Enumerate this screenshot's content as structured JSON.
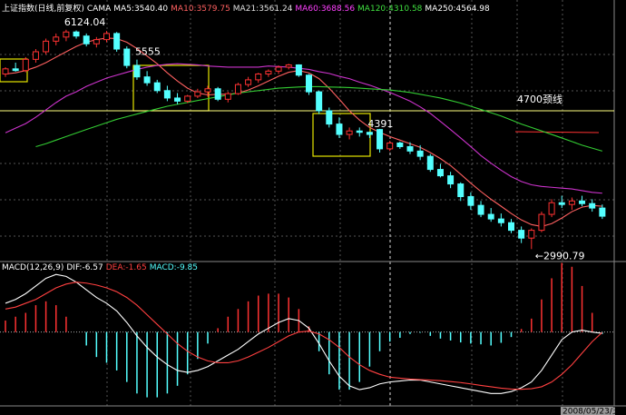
{
  "chart_data": [
    {
      "type": "candlestick",
      "title": "上证指数(日线,前复权)",
      "subtitle": "CAMA",
      "log_scale": true,
      "ylim": [
        2880,
        6750
      ],
      "up_color": "#ff3232",
      "down_color": "#54ffff",
      "legend_labels": [
        {
          "text": "MA5:3540.40",
          "color": "#ffffff"
        },
        {
          "text": "MA10:3579.75",
          "color": "#ff6060"
        },
        {
          "text": "MA21:3561.24",
          "color": "#e0e0e0"
        },
        {
          "text": "MA60:3688.56",
          "color": "#ff40ff"
        },
        {
          "text": "MA120:4310.58",
          "color": "#40e040"
        },
        {
          "text": "MA250:4564.98",
          "color": "#ffffff"
        }
      ],
      "open": [
        5300,
        5390,
        5360,
        5560,
        5700,
        5900,
        5980,
        6080,
        6000,
        5850,
        5930,
        6050,
        5750,
        5450,
        5250,
        5150,
        5020,
        4900,
        4850,
        4930,
        5000,
        5050,
        4880,
        4970,
        5120,
        5200,
        5300,
        5350,
        5420,
        5460,
        5280,
        5000,
        4700,
        4500,
        4350,
        4400,
        4380,
        4420,
        4150,
        4230,
        4180,
        4120,
        4050,
        3880,
        3800,
        3700,
        3550,
        3450,
        3350,
        3300,
        3260,
        3180,
        3100,
        3180,
        3350,
        3480,
        3460,
        3500,
        3470,
        3420
      ],
      "high": [
        5420,
        5500,
        5600,
        5750,
        5950,
        6050,
        6124.04,
        6110,
        6050,
        5980,
        6100,
        6080,
        5800,
        5555,
        5350,
        5200,
        5100,
        4980,
        4950,
        5050,
        5100,
        5080,
        5000,
        5150,
        5250,
        5320,
        5380,
        5450,
        5480,
        5470,
        5300,
        5020,
        4750,
        4600,
        4450,
        4450,
        4391,
        4430,
        4260,
        4250,
        4240,
        4200,
        4080,
        3950,
        3850,
        3720,
        3600,
        3500,
        3420,
        3360,
        3300,
        3220,
        3200,
        3380,
        3520,
        3560,
        3540,
        3560,
        3520,
        3460
      ],
      "low": [
        5250,
        5340,
        5330,
        5500,
        5650,
        5820,
        5900,
        5950,
        5800,
        5780,
        5880,
        5700,
        5400,
        5200,
        5100,
        4980,
        4850,
        4800,
        4820,
        4900,
        4920,
        4850,
        4830,
        4950,
        5080,
        5150,
        5250,
        5300,
        5380,
        5250,
        4950,
        4650,
        4450,
        4300,
        4280,
        4320,
        4300,
        4100,
        4120,
        4150,
        4080,
        4000,
        3850,
        3780,
        3650,
        3500,
        3400,
        3320,
        3270,
        3220,
        3150,
        3050,
        2990.79,
        3160,
        3320,
        3420,
        3400,
        3440,
        3380,
        3300
      ],
      "close": [
        5390,
        5360,
        5560,
        5700,
        5900,
        5980,
        6080,
        6000,
        5850,
        5930,
        6050,
        5750,
        5450,
        5250,
        5150,
        5020,
        4900,
        4850,
        4930,
        5000,
        5050,
        4880,
        4970,
        5120,
        5200,
        5300,
        5350,
        5420,
        5460,
        5280,
        5000,
        4700,
        4500,
        4350,
        4400,
        4380,
        4350,
        4150,
        4230,
        4180,
        4120,
        4050,
        3880,
        3800,
        3700,
        3550,
        3450,
        3350,
        3300,
        3260,
        3180,
        3100,
        3180,
        3350,
        3480,
        3460,
        3500,
        3470,
        3420,
        3330
      ],
      "series": [
        {
          "color": "#ff6060",
          "values": [
            5300,
            5320,
            5360,
            5420,
            5500,
            5600,
            5700,
            5800,
            5880,
            5930,
            5960,
            5950,
            5880,
            5760,
            5620,
            5480,
            5320,
            5180,
            5060,
            4980,
            4950,
            4960,
            4960,
            4980,
            5030,
            5100,
            5180,
            5260,
            5330,
            5360,
            5320,
            5220,
            5060,
            4880,
            4700,
            4560,
            4450,
            4380,
            4320,
            4270,
            4220,
            4170,
            4100,
            4020,
            3930,
            3820,
            3710,
            3610,
            3520,
            3440,
            3360,
            3290,
            3240,
            3220,
            3250,
            3310,
            3380,
            3430,
            3450,
            3440
          ]
        },
        {
          "color": "#cc33cc",
          "values": [
            4374,
            4440,
            4507,
            4602,
            4712,
            4827,
            4930,
            5000,
            5090,
            5160,
            5230,
            5280,
            5330,
            5380,
            5420,
            5450,
            5470,
            5480,
            5470,
            5460,
            5440,
            5430,
            5420,
            5420,
            5420,
            5420,
            5440,
            5430,
            5420,
            5400,
            5380,
            5340,
            5310,
            5260,
            5220,
            5160,
            5110,
            5050,
            4990,
            4920,
            4850,
            4760,
            4660,
            4540,
            4420,
            4300,
            4180,
            4060,
            3960,
            3870,
            3790,
            3730,
            3690,
            3670,
            3660,
            3650,
            3640,
            3620,
            3600,
            3590
          ]
        },
        {
          "color": "#33cc33",
          "values": [
            null,
            null,
            null,
            4180,
            4220,
            4270,
            4320,
            4370,
            4420,
            4470,
            4520,
            4570,
            4610,
            4650,
            4690,
            4730,
            4770,
            4800,
            4830,
            4860,
            4890,
            4920,
            4950,
            4980,
            5000,
            5020,
            5040,
            5060,
            5070,
            5080,
            5085,
            5085,
            5080,
            5075,
            5070,
            5060,
            5050,
            5040,
            5030,
            5010,
            4990,
            4960,
            4930,
            4900,
            4860,
            4820,
            4770,
            4720,
            4670,
            4620,
            4560,
            4500,
            4450,
            4400,
            4350,
            4300,
            4250,
            4200,
            4160,
            4120
          ]
        }
      ],
      "hline": {
        "value": 4700,
        "label": "4700颈线",
        "color": "#ffff80"
      },
      "annotations": [
        {
          "label": "6124.04",
          "value": 6124.04
        },
        {
          "label": "5555",
          "value": 5555
        },
        {
          "label": "4391",
          "value": 4391
        },
        {
          "label": "←2990.79",
          "value": 2990.79
        }
      ]
    },
    {
      "type": "macd",
      "title": "MACD(12,26,9)",
      "ylim": [
        -380,
        320
      ],
      "legend_labels": [
        {
          "text": "DIF:-6.57",
          "color": "#ffffff"
        },
        {
          "text": "DEA:-1.65",
          "color": "#ff4040"
        },
        {
          "text": "MACD:-9.85",
          "color": "#54ffff"
        }
      ],
      "series": [
        {
          "color": "#ffffff",
          "values": [
            150,
            170,
            200,
            240,
            280,
            300,
            290,
            260,
            220,
            180,
            150,
            110,
            50,
            -20,
            -80,
            -130,
            -170,
            -200,
            -210,
            -200,
            -180,
            -150,
            -120,
            -90,
            -50,
            -10,
            20,
            50,
            70,
            60,
            20,
            -60,
            -150,
            -230,
            -280,
            -300,
            -290,
            -270,
            -260,
            -255,
            -250,
            -250,
            -260,
            -270,
            -280,
            -290,
            -300,
            -310,
            -320,
            -320,
            -310,
            -290,
            -260,
            -200,
            -120,
            -40,
            0,
            10,
            0,
            -6.57
          ]
        },
        {
          "color": "#ff4040",
          "values": [
            120,
            130,
            150,
            170,
            200,
            230,
            250,
            260,
            255,
            245,
            230,
            210,
            180,
            140,
            90,
            40,
            -10,
            -60,
            -100,
            -130,
            -150,
            -160,
            -160,
            -150,
            -130,
            -105,
            -80,
            -50,
            -20,
            0,
            5,
            -10,
            -40,
            -80,
            -130,
            -170,
            -200,
            -220,
            -235,
            -240,
            -245,
            -248,
            -250,
            -253,
            -258,
            -263,
            -270,
            -278,
            -285,
            -292,
            -297,
            -298,
            -295,
            -285,
            -260,
            -220,
            -170,
            -110,
            -50,
            -1.65
          ]
        }
      ],
      "bars": {
        "up_color": "#ff3232",
        "down_color": "#54ffff",
        "values": [
          60,
          80,
          100,
          140,
          160,
          140,
          80,
          0,
          -70,
          -130,
          -160,
          -200,
          -260,
          -320,
          -340,
          -340,
          -320,
          -280,
          -220,
          -140,
          -60,
          20,
          80,
          120,
          160,
          190,
          200,
          200,
          180,
          120,
          30,
          -100,
          -220,
          -300,
          -300,
          -260,
          -180,
          -100,
          -50,
          -30,
          -10,
          -4,
          -20,
          -34,
          -44,
          -54,
          -60,
          -64,
          -70,
          -56,
          -26,
          16,
          70,
          170,
          280,
          360,
          340,
          240,
          100,
          -9.85
        ]
      }
    }
  ],
  "cursor_date": "2008/05/23/五"
}
